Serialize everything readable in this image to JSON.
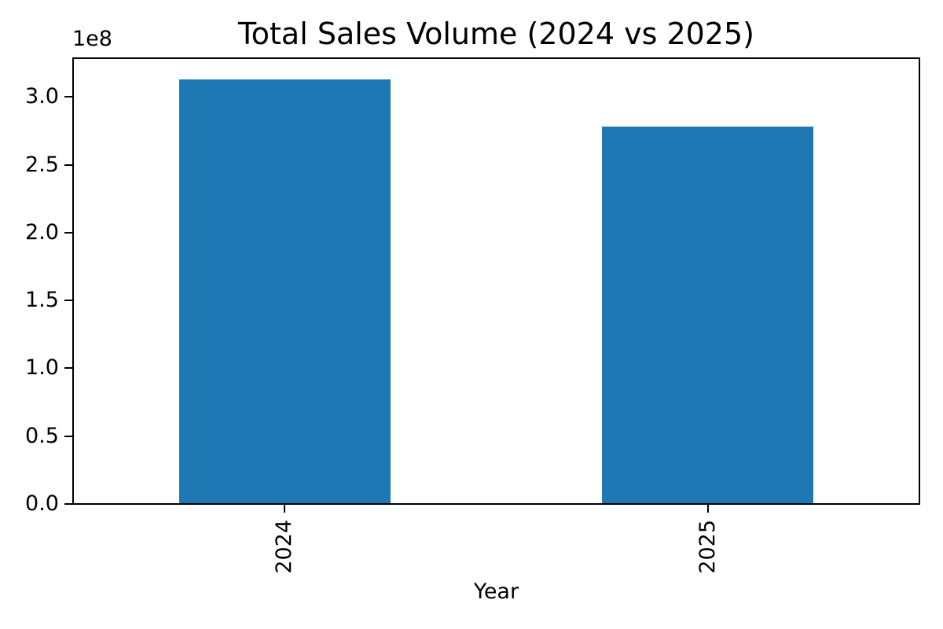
{
  "chart_data": {
    "type": "bar",
    "title": "Total Sales Volume (2024 vs 2025)",
    "xlabel": "Year",
    "ylabel": "",
    "categories": [
      "2024",
      "2025"
    ],
    "values": [
      313000000,
      278000000
    ],
    "bar_color": "#1f77b4",
    "bar_width_fraction": 0.5,
    "x_tick_rotation_deg": 90,
    "ylim": [
      0,
      328650000
    ],
    "y_offset_label": "1e8",
    "y_ticks": [
      {
        "value": 0,
        "label": "0.0"
      },
      {
        "value": 50000000,
        "label": "0.5"
      },
      {
        "value": 100000000,
        "label": "1.0"
      },
      {
        "value": 150000000,
        "label": "1.5"
      },
      {
        "value": 200000000,
        "label": "2.0"
      },
      {
        "value": 250000000,
        "label": "2.5"
      },
      {
        "value": 300000000,
        "label": "3.0"
      }
    ],
    "grid": false,
    "legend": false,
    "text_color": "#000000",
    "background_color": "#ffffff",
    "spine_color": "#000000"
  }
}
